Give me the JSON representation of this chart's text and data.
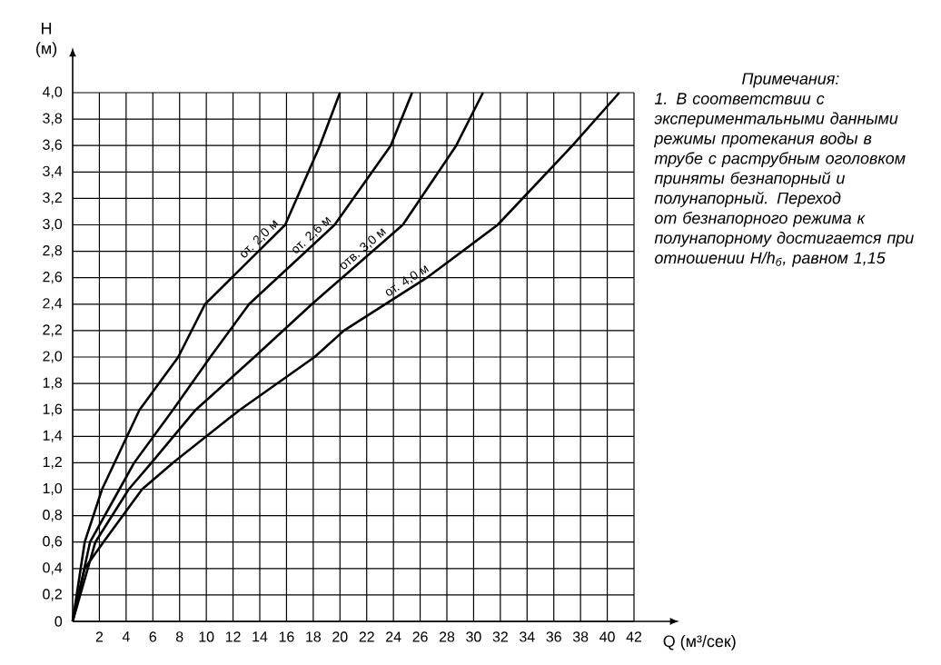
{
  "chart_data": {
    "type": "line",
    "ylabel": "Н (м)",
    "xlabel": "Q (м³/сек)",
    "xlim": [
      0,
      42
    ],
    "ylim": [
      0,
      4.0
    ],
    "xticks": [
      2,
      4,
      6,
      8,
      10,
      12,
      14,
      16,
      18,
      20,
      22,
      24,
      26,
      28,
      30,
      32,
      34,
      36,
      38,
      40,
      42
    ],
    "yticks": [
      {
        "value": 0,
        "label": "0"
      },
      {
        "value": 0.2,
        "label": "0,2"
      },
      {
        "value": 0.4,
        "label": "0,4"
      },
      {
        "value": 0.6,
        "label": "0,6"
      },
      {
        "value": 0.8,
        "label": "0,8"
      },
      {
        "value": 1.0,
        "label": "1,0"
      },
      {
        "value": 1.2,
        "label": "1,2"
      },
      {
        "value": 1.4,
        "label": "1,4"
      },
      {
        "value": 1.6,
        "label": "1,6"
      },
      {
        "value": 1.8,
        "label": "1,8"
      },
      {
        "value": 2.0,
        "label": "2,0"
      },
      {
        "value": 2.2,
        "label": "2,2"
      },
      {
        "value": 2.4,
        "label": "2,4"
      },
      {
        "value": 2.6,
        "label": "2,6"
      },
      {
        "value": 2.8,
        "label": "2,8"
      },
      {
        "value": 3.0,
        "label": "3,0"
      },
      {
        "value": 3.2,
        "label": "3,2"
      },
      {
        "value": 3.4,
        "label": "3,4"
      },
      {
        "value": 3.6,
        "label": "3,6"
      },
      {
        "value": 3.8,
        "label": "3,8"
      },
      {
        "value": 4.0,
        "label": "4,0"
      }
    ],
    "grid": true,
    "marker": "none",
    "line_style": "solid",
    "series": [
      {
        "name": "от. 2,0 м",
        "color": "#000000",
        "x": [
          0,
          0.9,
          2.2,
          5.0,
          7.9,
          9.9,
          15.9,
          18.5,
          20.0
        ],
        "values": [
          0,
          0.6,
          1.0,
          1.6,
          2.0,
          2.4,
          3.0,
          3.6,
          4.0
        ]
      },
      {
        "name": "от. 2,6 м",
        "color": "#000000",
        "x": [
          0,
          1.3,
          3.5,
          4.6,
          7.5,
          10.3,
          13.2,
          19.6,
          23.8,
          25.4
        ],
        "values": [
          0,
          0.6,
          1.0,
          1.2,
          1.6,
          2.0,
          2.4,
          3.0,
          3.6,
          4.0
        ]
      },
      {
        "name": "отв. 3,0 м",
        "color": "#000000",
        "x": [
          0,
          1.7,
          4.2,
          5.9,
          9.2,
          13.6,
          17.9,
          24.7,
          28.7,
          30.7
        ],
        "values": [
          0,
          0.6,
          1.0,
          1.2,
          1.6,
          2.0,
          2.4,
          3.0,
          3.6,
          4.0
        ]
      },
      {
        "name": "от. 4,0 м",
        "color": "#000000",
        "x": [
          0,
          0.9,
          2.3,
          5.2,
          7.5,
          12.5,
          18.1,
          20.3,
          26.5,
          31.8,
          37.4,
          40.9
        ],
        "values": [
          0,
          0.4,
          0.6,
          1.0,
          1.2,
          1.6,
          2.0,
          2.2,
          2.6,
          3.0,
          3.6,
          4.0
        ]
      }
    ],
    "annotations": [
      "Примечания:",
      "1. В соответствии с экспериментальными данными режимы протекания воды в трубе с раструбным оголовком приняты безнапорный и полунапорный. Переход от безнапорного режима к полунапорному достигается при отношении H/h$_{б}$, равном 1,15"
    ]
  }
}
